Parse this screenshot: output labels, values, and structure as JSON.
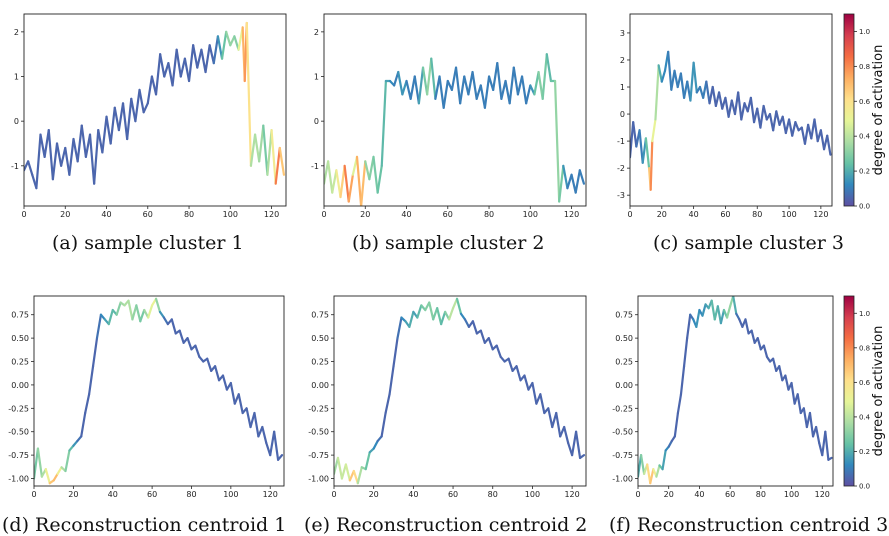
{
  "colorbar": {
    "label": "degree of activation",
    "range": [
      0.0,
      1.1
    ],
    "ticks": [
      0.0,
      0.2,
      0.4,
      0.6,
      0.8,
      1.0
    ],
    "tick_labels": [
      "0.0",
      "0.2",
      "0.4",
      "0.6",
      "0.8",
      "1.0"
    ],
    "colormap": "Spectral_r",
    "colormap_stops": [
      "#5e4fa2",
      "#3288bd",
      "#66c2a5",
      "#abdda4",
      "#e6f598",
      "#fee08b",
      "#fdae61",
      "#f46d43",
      "#d53e4f",
      "#9e0142"
    ]
  },
  "chart_data": [
    {
      "type": "line",
      "caption": "(a) sample cluster 1",
      "xlim": [
        0,
        127
      ],
      "ylim": [
        -1.9,
        2.4
      ],
      "xticks": [
        0,
        20,
        40,
        60,
        80,
        100,
        120
      ],
      "yticks": [
        -1,
        0,
        1,
        2
      ],
      "x": [
        0,
        2,
        4,
        6,
        8,
        10,
        12,
        14,
        16,
        18,
        20,
        22,
        24,
        26,
        28,
        30,
        32,
        34,
        36,
        38,
        40,
        42,
        44,
        46,
        48,
        50,
        52,
        54,
        56,
        58,
        60,
        62,
        64,
        66,
        68,
        70,
        72,
        74,
        76,
        78,
        80,
        82,
        84,
        86,
        88,
        90,
        92,
        94,
        96,
        98,
        100,
        102,
        104,
        106,
        107,
        108,
        110,
        112,
        114,
        116,
        118,
        120,
        122,
        124,
        126
      ],
      "y": [
        -1.1,
        -0.9,
        -1.2,
        -1.5,
        -0.3,
        -0.8,
        -0.2,
        -1.3,
        -0.5,
        -1.0,
        -0.6,
        -1.2,
        -0.4,
        -0.9,
        -0.1,
        -0.8,
        -0.3,
        -1.4,
        -0.2,
        -0.7,
        0.1,
        -0.5,
        0.3,
        -0.2,
        0.4,
        -0.4,
        0.5,
        0.0,
        0.7,
        0.2,
        0.4,
        1.0,
        0.6,
        1.5,
        1.0,
        1.3,
        0.8,
        1.6,
        1.0,
        1.4,
        0.9,
        1.7,
        1.2,
        1.6,
        1.1,
        1.7,
        1.3,
        1.9,
        1.4,
        2.0,
        1.7,
        1.9,
        1.6,
        2.1,
        0.9,
        2.2,
        -1.0,
        -0.3,
        -0.9,
        -0.1,
        -1.2,
        -0.2,
        -1.4,
        -0.6,
        -1.2
      ],
      "activation": [
        0.05,
        0.05,
        0.05,
        0.05,
        0.05,
        0.05,
        0.05,
        0.05,
        0.05,
        0.05,
        0.05,
        0.05,
        0.05,
        0.05,
        0.05,
        0.05,
        0.05,
        0.05,
        0.05,
        0.05,
        0.05,
        0.05,
        0.05,
        0.05,
        0.05,
        0.05,
        0.05,
        0.05,
        0.05,
        0.05,
        0.05,
        0.05,
        0.05,
        0.05,
        0.05,
        0.05,
        0.05,
        0.05,
        0.05,
        0.05,
        0.05,
        0.05,
        0.05,
        0.05,
        0.05,
        0.05,
        0.05,
        0.1,
        0.2,
        0.3,
        0.35,
        0.3,
        0.3,
        0.7,
        0.75,
        0.8,
        0.4,
        0.35,
        0.4,
        0.3,
        0.25,
        0.5,
        0.6,
        1.05,
        0.3
      ]
    },
    {
      "type": "line",
      "caption": "(b) sample cluster 2",
      "xlim": [
        0,
        127
      ],
      "ylim": [
        -1.9,
        2.4
      ],
      "xticks": [
        0,
        20,
        40,
        60,
        80,
        100,
        120
      ],
      "yticks": [
        -1,
        0,
        1,
        2
      ],
      "x": [
        0,
        2,
        4,
        6,
        8,
        10,
        12,
        14,
        16,
        18,
        20,
        22,
        24,
        26,
        28,
        30,
        32,
        34,
        36,
        38,
        40,
        42,
        44,
        46,
        48,
        50,
        52,
        54,
        56,
        58,
        60,
        62,
        64,
        66,
        68,
        70,
        72,
        74,
        76,
        78,
        80,
        82,
        84,
        86,
        88,
        90,
        92,
        94,
        96,
        98,
        100,
        102,
        104,
        106,
        108,
        110,
        112,
        114,
        116,
        118,
        120,
        122,
        124,
        126
      ],
      "y": [
        -1.4,
        -0.9,
        -1.6,
        -1.1,
        -1.7,
        -1.0,
        -1.8,
        -1.2,
        -0.8,
        -1.9,
        -0.9,
        -1.3,
        -0.8,
        -1.6,
        -1.0,
        0.9,
        0.9,
        0.8,
        1.1,
        0.6,
        0.9,
        0.5,
        1.0,
        0.4,
        1.2,
        0.6,
        1.4,
        0.5,
        1.0,
        0.3,
        0.9,
        0.7,
        1.2,
        0.4,
        1.0,
        0.6,
        1.1,
        0.5,
        0.8,
        0.3,
        1.0,
        0.7,
        1.3,
        0.5,
        0.9,
        0.4,
        1.2,
        0.6,
        1.0,
        0.4,
        0.8,
        0.6,
        1.1,
        0.5,
        1.5,
        0.9,
        0.9,
        -1.8,
        -1.0,
        -1.5,
        -1.2,
        -1.6,
        -1.1,
        -1.4
      ],
      "activation": [
        0.3,
        0.45,
        0.35,
        0.5,
        0.6,
        0.7,
        0.95,
        0.55,
        0.4,
        1.05,
        0.35,
        0.3,
        0.3,
        0.25,
        0.25,
        0.2,
        0.15,
        0.1,
        0.1,
        0.2,
        0.1,
        0.1,
        0.1,
        0.1,
        0.25,
        0.3,
        0.35,
        0.1,
        0.1,
        0.1,
        0.1,
        0.1,
        0.1,
        0.1,
        0.1,
        0.1,
        0.1,
        0.1,
        0.1,
        0.1,
        0.1,
        0.1,
        0.1,
        0.1,
        0.1,
        0.1,
        0.1,
        0.1,
        0.1,
        0.1,
        0.1,
        0.2,
        0.3,
        0.3,
        0.25,
        0.2,
        0.3,
        0.35,
        0.2,
        0.1,
        0.1,
        0.1,
        0.1,
        0.1
      ]
    },
    {
      "type": "line",
      "caption": "(c) sample cluster 3",
      "xlim": [
        0,
        127
      ],
      "ylim": [
        -3.4,
        3.7
      ],
      "xticks": [
        0,
        20,
        40,
        60,
        80,
        100,
        120
      ],
      "yticks": [
        -3,
        -2,
        -1,
        0,
        1,
        2,
        3
      ],
      "x": [
        0,
        2,
        4,
        6,
        8,
        10,
        12,
        13,
        14,
        16,
        18,
        20,
        22,
        24,
        26,
        28,
        30,
        32,
        34,
        36,
        38,
        40,
        42,
        44,
        46,
        48,
        50,
        52,
        54,
        56,
        58,
        60,
        62,
        64,
        66,
        68,
        70,
        72,
        74,
        76,
        78,
        80,
        82,
        84,
        86,
        88,
        90,
        92,
        94,
        96,
        98,
        100,
        102,
        104,
        106,
        108,
        110,
        112,
        114,
        116,
        118,
        120,
        122,
        124,
        126
      ],
      "y": [
        -1.6,
        -0.3,
        -1.2,
        -0.6,
        -1.8,
        -0.9,
        -2.0,
        -2.8,
        -1.0,
        -0.2,
        1.8,
        1.2,
        1.6,
        2.3,
        0.9,
        1.6,
        1.0,
        1.5,
        0.6,
        1.2,
        0.5,
        1.9,
        0.8,
        1.0,
        0.6,
        1.2,
        0.4,
        1.0,
        0.3,
        0.8,
        0.2,
        0.6,
        -0.1,
        0.5,
        0.0,
        0.8,
        -0.2,
        0.4,
        0.1,
        0.6,
        -0.3,
        0.2,
        -0.5,
        0.3,
        -0.2,
        0.0,
        -0.6,
        0.1,
        -0.4,
        -0.1,
        -0.7,
        -0.2,
        -0.8,
        -0.3,
        -0.6,
        -0.5,
        -1.1,
        -0.4,
        -0.9,
        -0.2,
        -1.0,
        -0.6,
        -1.3,
        -0.8,
        -1.5
      ],
      "activation": [
        0.05,
        0.05,
        0.05,
        0.1,
        0.1,
        0.2,
        0.3,
        1.05,
        0.55,
        0.45,
        0.3,
        0.1,
        0.15,
        0.1,
        0.1,
        0.1,
        0.1,
        0.1,
        0.1,
        0.1,
        0.1,
        0.2,
        0.1,
        0.1,
        0.1,
        0.1,
        0.05,
        0.05,
        0.05,
        0.05,
        0.05,
        0.05,
        0.05,
        0.05,
        0.05,
        0.05,
        0.05,
        0.05,
        0.05,
        0.05,
        0.05,
        0.05,
        0.05,
        0.05,
        0.05,
        0.05,
        0.05,
        0.05,
        0.05,
        0.05,
        0.05,
        0.05,
        0.05,
        0.05,
        0.05,
        0.05,
        0.05,
        0.05,
        0.05,
        0.05,
        0.05,
        0.05,
        0.05,
        0.05,
        0.05
      ]
    },
    {
      "type": "line",
      "caption": "(d) Reconstruction centroid 1",
      "xlim": [
        0,
        127
      ],
      "ylim": [
        -1.08,
        0.95
      ],
      "xticks": [
        0,
        20,
        40,
        60,
        80,
        100,
        120
      ],
      "yticks": [
        -1.0,
        -0.75,
        -0.5,
        -0.25,
        0.0,
        0.25,
        0.5,
        0.75
      ],
      "x": [
        0,
        2,
        4,
        6,
        8,
        10,
        12,
        14,
        16,
        18,
        20,
        22,
        24,
        26,
        28,
        30,
        32,
        34,
        36,
        38,
        40,
        42,
        44,
        46,
        48,
        50,
        52,
        54,
        56,
        58,
        60,
        62,
        64,
        66,
        68,
        70,
        72,
        74,
        76,
        78,
        80,
        82,
        84,
        86,
        88,
        90,
        92,
        94,
        96,
        98,
        100,
        102,
        104,
        106,
        108,
        110,
        112,
        114,
        116,
        118,
        120,
        122,
        124,
        126
      ],
      "y": [
        -1.0,
        -0.68,
        -0.98,
        -0.9,
        -1.05,
        -1.02,
        -0.95,
        -0.88,
        -0.92,
        -0.7,
        -0.65,
        -0.6,
        -0.55,
        -0.3,
        -0.1,
        0.2,
        0.5,
        0.75,
        0.7,
        0.65,
        0.8,
        0.75,
        0.88,
        0.85,
        0.9,
        0.7,
        0.85,
        0.68,
        0.8,
        0.72,
        0.85,
        0.92,
        0.78,
        0.72,
        0.65,
        0.7,
        0.55,
        0.58,
        0.45,
        0.5,
        0.38,
        0.42,
        0.3,
        0.25,
        0.28,
        0.15,
        0.2,
        0.05,
        0.1,
        -0.05,
        0.02,
        -0.2,
        -0.1,
        -0.3,
        -0.25,
        -0.45,
        -0.3,
        -0.55,
        -0.45,
        -0.62,
        -0.75,
        -0.5,
        -0.8,
        -0.75
      ],
      "activation": [
        0.2,
        0.35,
        0.3,
        0.45,
        0.6,
        0.75,
        0.65,
        0.4,
        0.35,
        0.25,
        0.2,
        0.1,
        0.05,
        0.05,
        0.05,
        0.05,
        0.05,
        0.1,
        0.15,
        0.2,
        0.25,
        0.2,
        0.4,
        0.3,
        0.45,
        0.3,
        0.35,
        0.25,
        0.3,
        0.4,
        0.55,
        0.45,
        0.2,
        0.1,
        0.05,
        0.05,
        0.05,
        0.05,
        0.05,
        0.05,
        0.05,
        0.05,
        0.05,
        0.05,
        0.05,
        0.05,
        0.05,
        0.05,
        0.05,
        0.05,
        0.05,
        0.05,
        0.05,
        0.05,
        0.05,
        0.05,
        0.05,
        0.05,
        0.05,
        0.05,
        0.05,
        0.05,
        0.05,
        0.05
      ]
    },
    {
      "type": "line",
      "caption": "(e) Reconstruction centroid 2",
      "xlim": [
        0,
        127
      ],
      "ylim": [
        -1.08,
        0.95
      ],
      "xticks": [
        0,
        20,
        40,
        60,
        80,
        100,
        120
      ],
      "yticks": [
        -1.0,
        -0.75,
        -0.5,
        -0.25,
        0.0,
        0.25,
        0.5,
        0.75
      ],
      "x": [
        0,
        2,
        4,
        6,
        8,
        10,
        12,
        14,
        16,
        18,
        20,
        22,
        24,
        26,
        28,
        30,
        32,
        34,
        36,
        38,
        40,
        42,
        44,
        46,
        48,
        50,
        52,
        54,
        56,
        58,
        60,
        62,
        64,
        66,
        68,
        70,
        72,
        74,
        76,
        78,
        80,
        82,
        84,
        86,
        88,
        90,
        92,
        94,
        96,
        98,
        100,
        102,
        104,
        106,
        108,
        110,
        112,
        114,
        116,
        118,
        120,
        122,
        124,
        126
      ],
      "y": [
        -0.95,
        -0.78,
        -1.0,
        -0.85,
        -1.02,
        -0.92,
        -1.05,
        -0.88,
        -0.9,
        -0.72,
        -0.68,
        -0.6,
        -0.55,
        -0.3,
        -0.1,
        0.2,
        0.5,
        0.72,
        0.68,
        0.62,
        0.78,
        0.72,
        0.85,
        0.8,
        0.88,
        0.7,
        0.82,
        0.65,
        0.78,
        0.7,
        0.82,
        0.92,
        0.76,
        0.7,
        0.62,
        0.68,
        0.55,
        0.58,
        0.45,
        0.5,
        0.38,
        0.42,
        0.3,
        0.25,
        0.28,
        0.15,
        0.2,
        0.05,
        0.1,
        -0.05,
        0.02,
        -0.2,
        -0.1,
        -0.3,
        -0.25,
        -0.45,
        -0.3,
        -0.55,
        -0.45,
        -0.62,
        -0.75,
        -0.5,
        -0.78,
        -0.75
      ],
      "activation": [
        0.3,
        0.4,
        0.45,
        0.4,
        0.5,
        0.85,
        0.4,
        0.35,
        0.3,
        0.2,
        0.15,
        0.1,
        0.05,
        0.05,
        0.05,
        0.05,
        0.05,
        0.1,
        0.15,
        0.2,
        0.2,
        0.15,
        0.3,
        0.25,
        0.35,
        0.25,
        0.3,
        0.2,
        0.25,
        0.35,
        0.45,
        0.35,
        0.15,
        0.1,
        0.05,
        0.05,
        0.05,
        0.05,
        0.05,
        0.05,
        0.05,
        0.05,
        0.05,
        0.05,
        0.05,
        0.05,
        0.05,
        0.05,
        0.05,
        0.05,
        0.05,
        0.05,
        0.05,
        0.05,
        0.05,
        0.05,
        0.05,
        0.05,
        0.05,
        0.05,
        0.05,
        0.05,
        0.05,
        0.05
      ]
    },
    {
      "type": "line",
      "caption": "(f) Reconstruction centroid 3",
      "xlim": [
        0,
        127
      ],
      "ylim": [
        -1.08,
        0.95
      ],
      "xticks": [
        0,
        20,
        40,
        60,
        80,
        100,
        120
      ],
      "yticks": [
        -1.0,
        -0.75,
        -0.5,
        -0.25,
        0.0,
        0.25,
        0.5,
        0.75
      ],
      "x": [
        0,
        2,
        4,
        6,
        8,
        10,
        12,
        14,
        16,
        18,
        20,
        22,
        24,
        26,
        28,
        30,
        32,
        34,
        36,
        38,
        40,
        42,
        44,
        46,
        48,
        50,
        52,
        54,
        56,
        58,
        60,
        62,
        64,
        66,
        68,
        70,
        72,
        74,
        76,
        78,
        80,
        82,
        84,
        86,
        88,
        90,
        92,
        94,
        96,
        98,
        100,
        102,
        104,
        106,
        108,
        110,
        112,
        114,
        116,
        118,
        120,
        122,
        124,
        126
      ],
      "y": [
        -0.98,
        -0.75,
        -0.95,
        -0.85,
        -1.05,
        -0.9,
        -0.98,
        -0.86,
        -0.9,
        -0.7,
        -0.66,
        -0.6,
        -0.55,
        -0.3,
        -0.1,
        0.2,
        0.5,
        0.75,
        0.7,
        0.62,
        0.8,
        0.74,
        0.86,
        0.82,
        0.9,
        0.7,
        0.84,
        0.66,
        0.8,
        0.72,
        0.84,
        0.95,
        0.76,
        0.7,
        0.62,
        0.7,
        0.55,
        0.58,
        0.45,
        0.5,
        0.38,
        0.42,
        0.3,
        0.25,
        0.28,
        0.15,
        0.2,
        0.05,
        0.1,
        -0.05,
        0.02,
        -0.2,
        -0.1,
        -0.3,
        -0.25,
        -0.45,
        -0.3,
        -0.55,
        -0.45,
        -0.62,
        -0.75,
        -0.5,
        -0.8,
        -0.78
      ],
      "activation": [
        0.15,
        0.25,
        0.35,
        0.5,
        0.75,
        0.6,
        0.45,
        0.3,
        0.2,
        0.15,
        0.1,
        0.05,
        0.05,
        0.05,
        0.05,
        0.05,
        0.05,
        0.05,
        0.1,
        0.15,
        0.15,
        0.1,
        0.2,
        0.15,
        0.25,
        0.2,
        0.25,
        0.15,
        0.2,
        0.3,
        0.35,
        0.3,
        0.1,
        0.05,
        0.05,
        0.05,
        0.05,
        0.05,
        0.05,
        0.05,
        0.05,
        0.05,
        0.05,
        0.05,
        0.05,
        0.05,
        0.05,
        0.05,
        0.05,
        0.05,
        0.05,
        0.05,
        0.05,
        0.05,
        0.05,
        0.05,
        0.05,
        0.05,
        0.05,
        0.05,
        0.05,
        0.05,
        0.05,
        0.05
      ]
    }
  ]
}
